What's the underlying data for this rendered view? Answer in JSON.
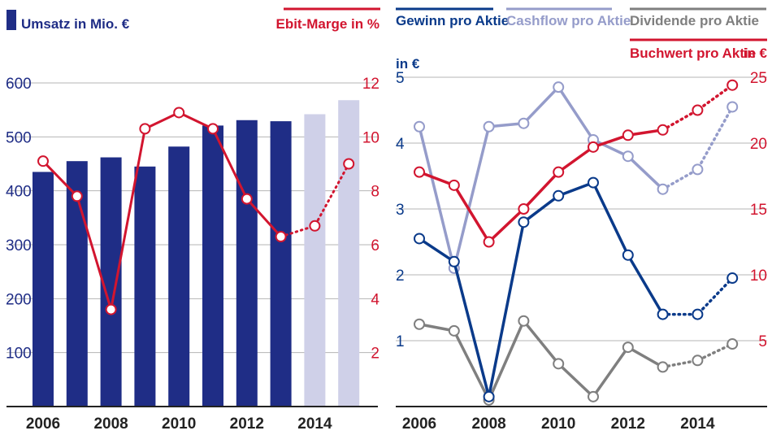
{
  "chart_data": [
    {
      "type": "bar",
      "categories": [
        "2006",
        "2007",
        "2008",
        "2009",
        "2010",
        "2011",
        "2012",
        "2013",
        "2014",
        "2015"
      ],
      "series": [
        {
          "name": "Umsatz in Mio. €",
          "axis": "left",
          "values": [
            435,
            455,
            462,
            445,
            482,
            521,
            531,
            529,
            542,
            568
          ],
          "forecast_from_index": 8,
          "color": "#1f2d86",
          "forecast_color": "#cfd0e8"
        },
        {
          "name": "Ebit-Marge in %",
          "type": "line",
          "axis": "right",
          "values": [
            9.1,
            7.8,
            3.6,
            10.3,
            10.9,
            10.3,
            7.7,
            6.3,
            6.7,
            9.0
          ],
          "forecast_from_index": 7,
          "color": "#d2152f"
        }
      ],
      "title_left": "Umsatz in Mio. €",
      "title_right": "Ebit-Marge in %",
      "ylim_left": [
        0,
        600
      ],
      "ylim_right": [
        0,
        12
      ],
      "yticks_left": [
        "100",
        "200",
        "300",
        "400",
        "500",
        "600"
      ],
      "yticks_right": [
        "2",
        "4",
        "6",
        "8",
        "10",
        "12"
      ],
      "xtick_labels": [
        "2006",
        "2008",
        "2010",
        "2012",
        "2014"
      ],
      "grid": true
    },
    {
      "type": "line",
      "categories": [
        "2006",
        "2007",
        "2008",
        "2009",
        "2010",
        "2011",
        "2012",
        "2013",
        "2014",
        "2015"
      ],
      "series": [
        {
          "name": "Gewinn pro Aktie",
          "axis": "left",
          "values": [
            2.55,
            2.2,
            0.15,
            2.8,
            3.2,
            3.4,
            2.3,
            1.4,
            1.4,
            1.95
          ],
          "forecast_from_index": 7,
          "color": "#0a3a8a"
        },
        {
          "name": "Cashflow pro Aktie",
          "axis": "left",
          "values": [
            4.25,
            2.1,
            4.25,
            4.3,
            4.85,
            4.05,
            3.8,
            3.3,
            3.6,
            4.55
          ],
          "forecast_from_index": 7,
          "color": "#959cca"
        },
        {
          "name": "Dividende pro Aktie",
          "axis": "left",
          "values": [
            1.25,
            1.15,
            0.1,
            1.3,
            0.65,
            0.15,
            0.9,
            0.6,
            0.7,
            0.95
          ],
          "forecast_from_index": 7,
          "color": "#7f7f7f"
        },
        {
          "name": "Buchwert pro Aktie",
          "axis": "right",
          "values": [
            17.8,
            16.8,
            12.5,
            15.0,
            17.8,
            19.7,
            20.6,
            21.0,
            22.5,
            24.4
          ],
          "forecast_from_index": 7,
          "color": "#d2152f"
        }
      ],
      "legend": [
        "Gewinn pro Aktie",
        "Cashflow pro Aktie",
        "Dividende pro Aktie",
        "Buchwert pro Aktie"
      ],
      "unit_right": "in €",
      "ylabel_left": "in €",
      "ylim_left": [
        0,
        5
      ],
      "ylim_right": [
        0,
        25
      ],
      "yticks_left": [
        "1",
        "2",
        "3",
        "4",
        "5"
      ],
      "yticks_right": [
        "5",
        "10",
        "15",
        "20",
        "25"
      ],
      "xtick_labels": [
        "2006",
        "2008",
        "2010",
        "2012",
        "2014"
      ],
      "grid": true
    }
  ]
}
